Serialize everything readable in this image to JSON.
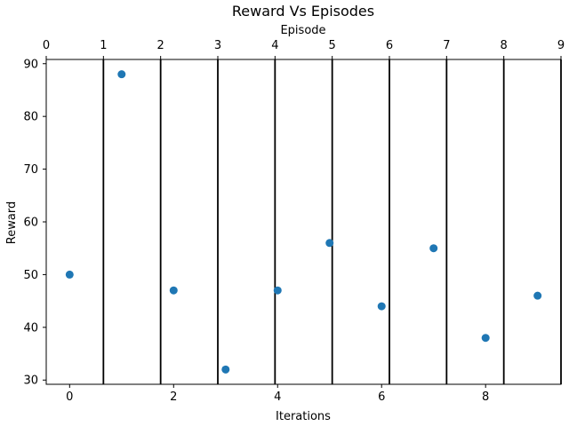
{
  "chart_data": {
    "type": "scatter",
    "title": "Reward Vs Episodes",
    "xlabel": "Iterations",
    "ylabel": "Reward",
    "top_xlabel": "Episode",
    "x": [
      0,
      1,
      2,
      3,
      4,
      5,
      6,
      7,
      8,
      9
    ],
    "y": [
      50,
      88,
      47,
      32,
      47,
      56,
      44,
      55,
      38,
      46
    ],
    "xlim": [
      -0.45,
      9.45
    ],
    "ylim": [
      29.2,
      90.8
    ],
    "xticks": [
      0,
      2,
      4,
      6,
      8
    ],
    "yticks": [
      30,
      40,
      50,
      60,
      70,
      80,
      90
    ],
    "top_ticks": [
      0,
      1,
      2,
      3,
      4,
      5,
      6,
      7,
      8,
      9
    ],
    "top_xlim": [
      0,
      9
    ],
    "vlines_top": [
      1,
      2,
      3,
      4,
      5,
      6,
      7,
      8,
      9
    ],
    "marker_color": "#1f77b4",
    "line_color": "#000000",
    "grid": false
  }
}
